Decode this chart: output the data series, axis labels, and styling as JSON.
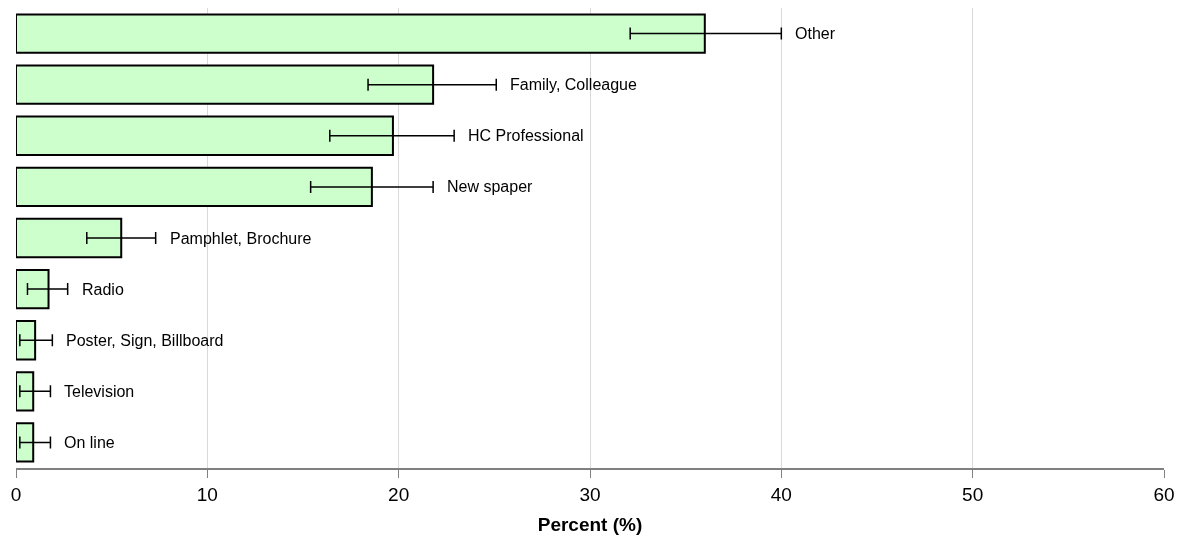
{
  "chart_data": {
    "type": "bar",
    "orientation": "horizontal",
    "xlabel": "Percent (%)",
    "categories": [
      "Other",
      "Family, Colleague",
      "HC Professional",
      "New spaper",
      "Pamphlet, Brochure",
      "Radio",
      "Poster, Sign, Billboard",
      "Television",
      "On line"
    ],
    "values": [
      36.0,
      21.8,
      19.7,
      18.6,
      5.5,
      1.7,
      1.0,
      0.9,
      0.9
    ],
    "errors": [
      [
        32.1,
        40.0
      ],
      [
        18.4,
        25.1
      ],
      [
        16.4,
        22.9
      ],
      [
        15.4,
        21.8
      ],
      [
        3.7,
        7.3
      ],
      [
        0.6,
        2.7
      ],
      [
        0.2,
        1.9
      ],
      [
        0.2,
        1.8
      ],
      [
        0.2,
        1.8
      ]
    ],
    "color": "#ccffcc",
    "xlim": [
      0,
      60
    ],
    "xticks": [
      0,
      10,
      20,
      30,
      40,
      50,
      60
    ],
    "grid": "x",
    "tick_labels": "x"
  }
}
